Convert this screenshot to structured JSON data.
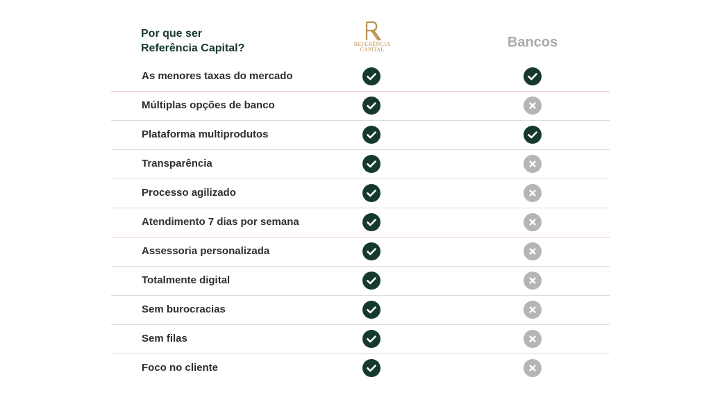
{
  "header": {
    "title_line1": "Por que ser",
    "title_line2": "Referência Capital?",
    "brand_logo": {
      "monogram": "R",
      "line1": "REFERÊNCIA",
      "line2": "CAPITAL"
    },
    "banks_label": "Bancos"
  },
  "colors": {
    "check": "#16392e",
    "cross": "#b5b5b5",
    "brand_gold": "#b98f4c",
    "title": "#16392e"
  },
  "icons": {
    "included": "check-icon",
    "not_included": "x-icon"
  },
  "rows": [
    {
      "label": "As menores taxas do mercado",
      "referencia": true,
      "bancos": true
    },
    {
      "label": "Múltiplas opções de banco",
      "referencia": true,
      "bancos": false
    },
    {
      "label": "Plataforma multiprodutos",
      "referencia": true,
      "bancos": true
    },
    {
      "label": "Transparência",
      "referencia": true,
      "bancos": false
    },
    {
      "label": "Processo agilizado",
      "referencia": true,
      "bancos": false
    },
    {
      "label": "Atendimento 7 dias por semana",
      "referencia": true,
      "bancos": false
    },
    {
      "label": "Assessoria personalizada",
      "referencia": true,
      "bancos": false
    },
    {
      "label": "Totalmente digital",
      "referencia": true,
      "bancos": false
    },
    {
      "label": "Sem burocracias",
      "referencia": true,
      "bancos": false
    },
    {
      "label": "Sem filas",
      "referencia": true,
      "bancos": false
    },
    {
      "label": "Foco no cliente",
      "referencia": true,
      "bancos": false
    }
  ]
}
